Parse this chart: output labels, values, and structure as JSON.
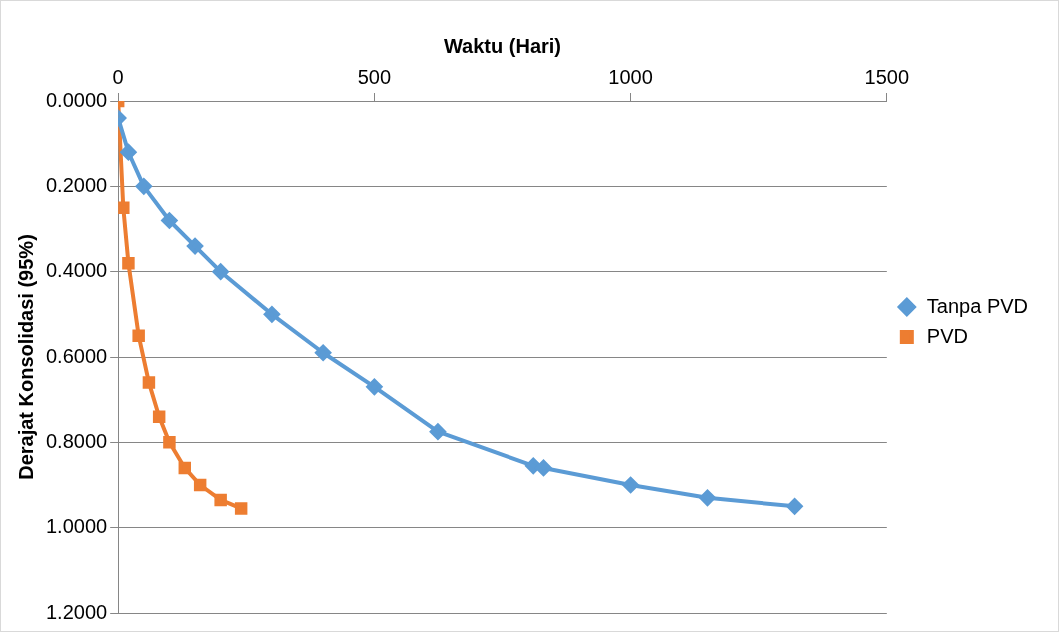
{
  "chart_data": {
    "type": "line",
    "xlabel": "Waktu (Hari)",
    "ylabel": "Derajat Konsolidasi (95%)",
    "xlim": [
      0,
      1500
    ],
    "xticks": [
      0,
      500,
      1000,
      1500
    ],
    "ylim": [
      1.2,
      0
    ],
    "yticks": [
      {
        "value": 0,
        "label": "0.0000"
      },
      {
        "value": 0.2,
        "label": "0.2000"
      },
      {
        "value": 0.4,
        "label": "0.4000"
      },
      {
        "value": 0.6,
        "label": "0.6000"
      },
      {
        "value": 0.8,
        "label": "0.8000"
      },
      {
        "value": 1,
        "label": "1.0000"
      },
      {
        "value": 1.2,
        "label": "1.2000"
      }
    ],
    "grid": "y",
    "legend": "right",
    "series": [
      {
        "name": "Tanpa PVD",
        "color": "#5b9bd5",
        "marker": "diamond",
        "x": [
          0,
          20,
          50,
          100,
          150,
          200,
          300,
          400,
          500,
          624,
          810,
          830,
          1000,
          1150,
          1320
        ],
        "values": [
          0.04,
          0.12,
          0.2,
          0.28,
          0.34,
          0.4,
          0.5,
          0.59,
          0.67,
          0.775,
          0.855,
          0.86,
          0.9,
          0.93,
          0.95
        ]
      },
      {
        "name": "PVD",
        "color": "#ed7d31",
        "marker": "square",
        "x": [
          0,
          10,
          20,
          40,
          60,
          80,
          100,
          130,
          160,
          200,
          240
        ],
        "values": [
          0,
          0.25,
          0.38,
          0.55,
          0.66,
          0.74,
          0.8,
          0.86,
          0.9,
          0.935,
          0.955
        ]
      }
    ]
  }
}
